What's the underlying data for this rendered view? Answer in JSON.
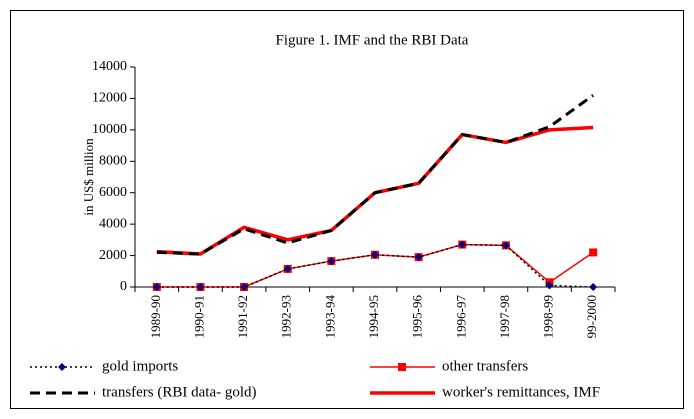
{
  "chart_data": {
    "type": "line",
    "title": "Figure 1. IMF and the RBI Data",
    "y_label": "in US$ million",
    "categories": [
      "1989-90",
      "1990-91",
      "1991-92",
      "1992-93",
      "1993-94",
      "1994-95",
      "1995-96",
      "1996-97",
      "1997-98",
      "1998-99",
      "99-2000"
    ],
    "ylim": [
      0,
      14000
    ],
    "yticks": [
      0,
      2000,
      4000,
      6000,
      8000,
      10000,
      12000,
      14000
    ],
    "grid": false,
    "legend": "bottom",
    "series": [
      {
        "name": "gold imports",
        "color": "#000000",
        "marker_color": "#000080",
        "line_style": "dotted",
        "marker": "diamond",
        "values": [
          0,
          0,
          0,
          1150,
          1650,
          2050,
          1900,
          2700,
          2650,
          100,
          0
        ]
      },
      {
        "name": "other transfers",
        "color": "#ff0000",
        "marker_color": "#ff0000",
        "line_style": "solid",
        "marker": "square",
        "values": [
          0,
          0,
          0,
          1150,
          1650,
          2050,
          1900,
          2700,
          2650,
          300,
          2200
        ]
      },
      {
        "name": "transfers (RBI data- gold)",
        "color": "#000000",
        "line_style": "dashed",
        "marker": "none",
        "values": [
          2200,
          2100,
          3700,
          2800,
          3600,
          6000,
          6600,
          9700,
          9200,
          10200,
          12200
        ]
      },
      {
        "name": "worker's remittances, IMF",
        "color": "#ff0000",
        "line_style": "thick",
        "marker": "none",
        "values": [
          2250,
          2100,
          3800,
          3000,
          3600,
          6000,
          6600,
          9700,
          9200,
          10000,
          10150
        ]
      }
    ]
  }
}
